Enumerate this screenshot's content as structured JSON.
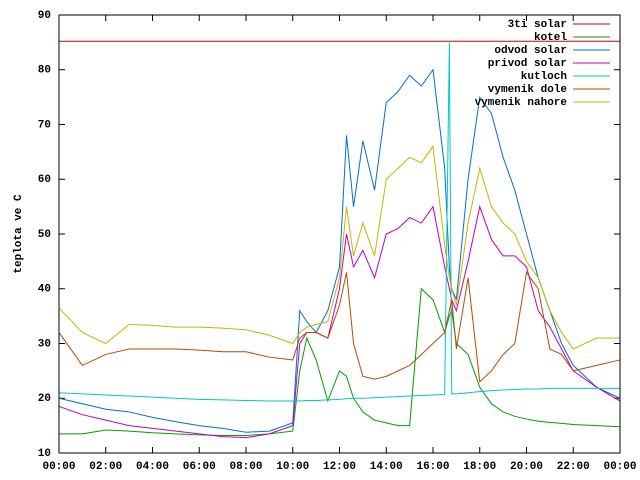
{
  "chart_data": {
    "type": "line",
    "y_label": "teplota ve C",
    "x": [
      0,
      1,
      2,
      3,
      4,
      5,
      6,
      7,
      8,
      9,
      10,
      10.3,
      10.6,
      11,
      11.5,
      12,
      12.3,
      12.6,
      13,
      13.5,
      14,
      14.5,
      15,
      15.5,
      16,
      16.5,
      16.7,
      16.8,
      17,
      17.5,
      18,
      18.5,
      19,
      19.5,
      20,
      20.5,
      21,
      21.5,
      22,
      23,
      24
    ],
    "xlim": [
      0,
      24
    ],
    "xticks": [
      {
        "value": 0,
        "label": "00:00"
      },
      {
        "value": 2,
        "label": "02:00"
      },
      {
        "value": 4,
        "label": "04:00"
      },
      {
        "value": 6,
        "label": "06:00"
      },
      {
        "value": 8,
        "label": "08:00"
      },
      {
        "value": 10,
        "label": "10:00"
      },
      {
        "value": 12,
        "label": "12:00"
      },
      {
        "value": 14,
        "label": "14:00"
      },
      {
        "value": 16,
        "label": "16:00"
      },
      {
        "value": 18,
        "label": "18:00"
      },
      {
        "value": 20,
        "label": "20:00"
      },
      {
        "value": 22,
        "label": "22:00"
      },
      {
        "value": 24,
        "label": "00:00"
      }
    ],
    "ylim": [
      10,
      90
    ],
    "yticks": [
      10,
      20,
      30,
      40,
      50,
      60,
      70,
      80,
      90
    ],
    "legend": "top-right",
    "series": [
      {
        "name": "3ti solar",
        "color": "#cc0000",
        "values": [
          85.2,
          85.2,
          85.2,
          85.2,
          85.2,
          85.2,
          85.2,
          85.2,
          85.2,
          85.2,
          85.2,
          85.2,
          85.2,
          85.2,
          85.2,
          85.2,
          85.2,
          85.2,
          85.2,
          85.2,
          85.2,
          85.2,
          85.2,
          85.2,
          85.2,
          85.2,
          85.2,
          85.2,
          85.2,
          85.2,
          85.2,
          85.2,
          85.2,
          85.2,
          85.2,
          85.2,
          85.2,
          85.2,
          85.2,
          85.2,
          85.2
        ]
      },
      {
        "name": "kotel",
        "color": "#00a000",
        "values": [
          13.5,
          13.5,
          14.2,
          14,
          13.7,
          13.5,
          13.3,
          13.2,
          13.2,
          13.5,
          14,
          25,
          31,
          27,
          19.5,
          25,
          24,
          20,
          17.5,
          16,
          15.5,
          15,
          15,
          40,
          38,
          32,
          35,
          36,
          30,
          28,
          22,
          19,
          17.5,
          16.7,
          16.2,
          15.8,
          15.6,
          15.4,
          15.2,
          15,
          14.8
        ]
      },
      {
        "name": "odvod solar",
        "color": "#0070d0",
        "values": [
          20,
          19,
          18,
          17.5,
          16.5,
          15.7,
          15,
          14.5,
          13.8,
          14,
          15.5,
          36,
          34,
          32,
          36,
          44,
          68,
          55,
          67,
          58,
          74,
          76,
          79,
          77,
          80,
          62,
          44,
          40,
          38,
          60,
          75,
          72,
          64,
          58,
          50,
          42,
          36,
          30,
          26,
          22,
          20
        ]
      },
      {
        "name": "privod solar",
        "color": "#c000c0",
        "values": [
          18.5,
          17,
          16,
          15,
          14.5,
          14,
          13.5,
          13,
          12.8,
          13.5,
          15,
          30,
          32,
          32,
          31,
          40,
          50,
          44,
          47,
          42,
          50,
          51,
          53,
          52,
          55,
          44,
          40,
          38,
          36,
          45,
          55,
          49,
          46,
          46,
          44,
          36,
          33,
          29,
          25,
          22,
          19.5
        ]
      },
      {
        "name": "kutloch",
        "color": "#00c8c8",
        "values": [
          21,
          20.8,
          20.6,
          20.4,
          20.2,
          20,
          19.8,
          19.7,
          19.6,
          19.5,
          19.5,
          19.5,
          19.6,
          19.6,
          19.7,
          19.8,
          19.9,
          20,
          20,
          20.1,
          20.2,
          20.3,
          20.4,
          20.5,
          20.6,
          20.7,
          85,
          20.8,
          20.8,
          21,
          21.2,
          21.4,
          21.5,
          21.6,
          21.7,
          21.7,
          21.8,
          21.8,
          21.8,
          21.8,
          21.8
        ]
      },
      {
        "name": "vymenik dole",
        "color": "#b84c00",
        "values": [
          32,
          26,
          28,
          29,
          29,
          29,
          28.8,
          28.5,
          28.5,
          27.5,
          27,
          31,
          32,
          32,
          31,
          37,
          43,
          30,
          24,
          23.5,
          24,
          25,
          26,
          28,
          30,
          32,
          36,
          38,
          29,
          42,
          23,
          25,
          28,
          30,
          43,
          40,
          29,
          28,
          25,
          26,
          27
        ]
      },
      {
        "name": "vymenik nahore",
        "color": "#c8b400",
        "values": [
          36.5,
          32,
          30,
          33.5,
          33.3,
          33,
          33,
          32.8,
          32.5,
          31.5,
          30,
          32,
          33,
          33.5,
          34,
          42,
          55,
          46,
          52,
          46,
          60,
          62,
          64,
          63,
          66,
          48,
          42,
          40,
          37,
          52,
          62,
          55,
          52,
          50,
          45,
          42,
          36,
          32,
          29,
          31,
          31
        ]
      }
    ]
  }
}
